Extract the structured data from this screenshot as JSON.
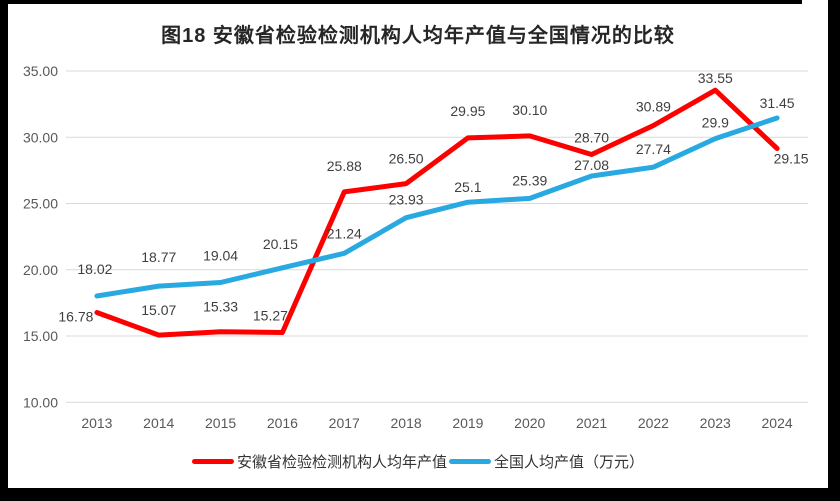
{
  "frame": {
    "border_color": "#000000",
    "panel_background": "#ffffff"
  },
  "title": "图18 安徽省检验检测机构人均年产值与全国情况的比较",
  "chart_data": {
    "type": "line",
    "categories": [
      "2013",
      "2014",
      "2015",
      "2016",
      "2017",
      "2018",
      "2019",
      "2020",
      "2021",
      "2022",
      "2023",
      "2024"
    ],
    "series": [
      {
        "name": "安徽省检验检测机构人均年产值",
        "color": "#FE0000",
        "values": [
          16.78,
          15.07,
          15.33,
          15.27,
          25.88,
          26.5,
          29.95,
          30.1,
          28.7,
          30.89,
          33.55,
          29.15
        ],
        "labels": [
          "16.78",
          "15.07",
          "15.33",
          "15.27",
          "25.88",
          "26.50",
          "29.95",
          "30.10",
          "28.70",
          "30.89",
          "33.55",
          "29.15"
        ],
        "label_offsets": [
          [
            -21,
            9
          ],
          [
            0,
            -20
          ],
          [
            0,
            -20
          ],
          [
            -12,
            -12
          ],
          [
            0,
            -21
          ],
          [
            0,
            -20
          ],
          [
            0,
            -22
          ],
          [
            0,
            -21
          ],
          [
            0,
            -12
          ],
          [
            0,
            -14
          ],
          [
            0,
            -7
          ],
          [
            14,
            15
          ]
        ]
      },
      {
        "name": "全国人均产值（万元）",
        "color": "#29A9E1",
        "values": [
          18.02,
          18.77,
          19.04,
          20.15,
          21.24,
          23.93,
          25.1,
          25.39,
          27.08,
          27.74,
          29.9,
          31.45
        ],
        "labels": [
          "18.02",
          "18.77",
          "19.04",
          "20.15",
          "21.24",
          "23.93",
          "25.1",
          "25.39",
          "27.08",
          "27.74",
          "29.9",
          "31.45"
        ],
        "label_offsets": [
          [
            -2,
            -22
          ],
          [
            0,
            -24
          ],
          [
            0,
            -22
          ],
          [
            -2,
            -19
          ],
          [
            0,
            -15
          ],
          [
            0,
            -13
          ],
          [
            0,
            -10
          ],
          [
            0,
            -13
          ],
          [
            0,
            -6
          ],
          [
            0,
            -13
          ],
          [
            0,
            -11
          ],
          [
            0,
            -10
          ]
        ]
      }
    ],
    "title": "图18 安徽省检验检测机构人均年产值与全国情况的比较",
    "xlabel": "",
    "ylabel": "",
    "y_axis": {
      "min": 10,
      "max": 35,
      "step": 5,
      "tick_labels": [
        "35.00",
        "30.00",
        "25.00",
        "20.00",
        "15.00",
        "10.00"
      ]
    },
    "grid": "horizontal-only",
    "legend_position": "bottom",
    "line_width": 5,
    "colors": {
      "gridline": "#D9D9D9",
      "tick_text": "#595959",
      "data_label_text": "#3F3F3F",
      "title_text": "#262626"
    }
  },
  "legend": {
    "items": [
      {
        "label": "安徽省检验检测机构人均年产值",
        "color": "#FE0000"
      },
      {
        "label": "全国人均产值（万元）",
        "color": "#29A9E1"
      }
    ]
  }
}
